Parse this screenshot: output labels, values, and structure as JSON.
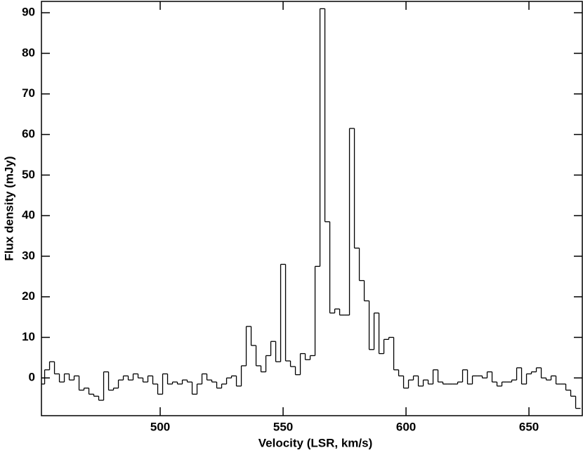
{
  "chart_data": {
    "type": "step",
    "x_label": "Velocity (LSR, km/s)",
    "y_label": "Flux density (mJy)",
    "color": "#000000",
    "x": [
      452,
      454,
      456,
      458,
      460,
      462,
      464,
      466,
      468,
      470,
      472,
      474,
      476,
      478,
      480,
      482,
      484,
      486,
      488,
      490,
      492,
      494,
      496,
      498,
      500,
      502,
      504,
      506,
      508,
      510,
      512,
      514,
      516,
      518,
      520,
      522,
      524,
      526,
      528,
      530,
      532,
      534,
      536,
      538,
      540,
      542,
      544,
      546,
      548,
      550,
      552,
      554,
      556,
      558,
      560,
      562,
      564,
      566,
      568,
      570,
      572,
      574,
      576,
      578,
      580,
      582,
      584,
      586,
      588,
      590,
      592,
      594,
      596,
      598,
      600,
      602,
      604,
      606,
      608,
      610,
      612,
      614,
      616,
      618,
      620,
      622,
      624,
      626,
      628,
      630,
      632,
      634,
      636,
      638,
      640,
      642,
      644,
      646,
      648,
      650,
      652,
      654,
      656,
      658,
      660,
      662,
      664,
      666,
      668,
      670
    ],
    "values": [
      -1.5,
      2,
      4,
      1,
      -1,
      1,
      -0.5,
      0.5,
      -3,
      -2.5,
      -4,
      -4.5,
      -5.5,
      1.5,
      -3,
      -2.5,
      -0.5,
      0.5,
      -0.5,
      1,
      0,
      -1,
      0.5,
      -1.5,
      -4,
      1,
      -1.5,
      -1,
      -1.5,
      -0.5,
      -1,
      -4,
      -1.5,
      1,
      -0.5,
      -1,
      -2.5,
      -1.5,
      0,
      0.5,
      -2,
      3,
      12.7,
      8,
      3,
      1.5,
      5.5,
      9,
      4,
      28,
      4.2,
      2.8,
      0.8,
      6,
      4.5,
      5.5,
      27.5,
      91,
      38.5,
      16,
      17,
      15.5,
      15.5,
      61.5,
      32,
      24,
      19,
      7,
      16,
      6,
      9.5,
      10,
      2,
      0.5,
      -2.5,
      -0.5,
      0.5,
      -2,
      -0.5,
      -1.5,
      2,
      -1,
      -1.5,
      -1.5,
      -1.5,
      -1,
      2,
      -1.5,
      0.5,
      0.5,
      0,
      1.5,
      -1,
      -2,
      -1,
      -1,
      -0.5,
      2.5,
      -1.5,
      1,
      1.5,
      2.5,
      0,
      -0.5,
      0.5,
      -1.5,
      -1.5,
      -3,
      -4.5,
      -7.5
    ],
    "channel_width": 2,
    "xlim": [
      451.7,
      671.7
    ],
    "ylim": [
      -9.3,
      92.8
    ],
    "xticks": [
      500,
      550,
      600,
      650
    ],
    "yticks": [
      0,
      10,
      20,
      30,
      40,
      50,
      60,
      70,
      80,
      90
    ]
  }
}
